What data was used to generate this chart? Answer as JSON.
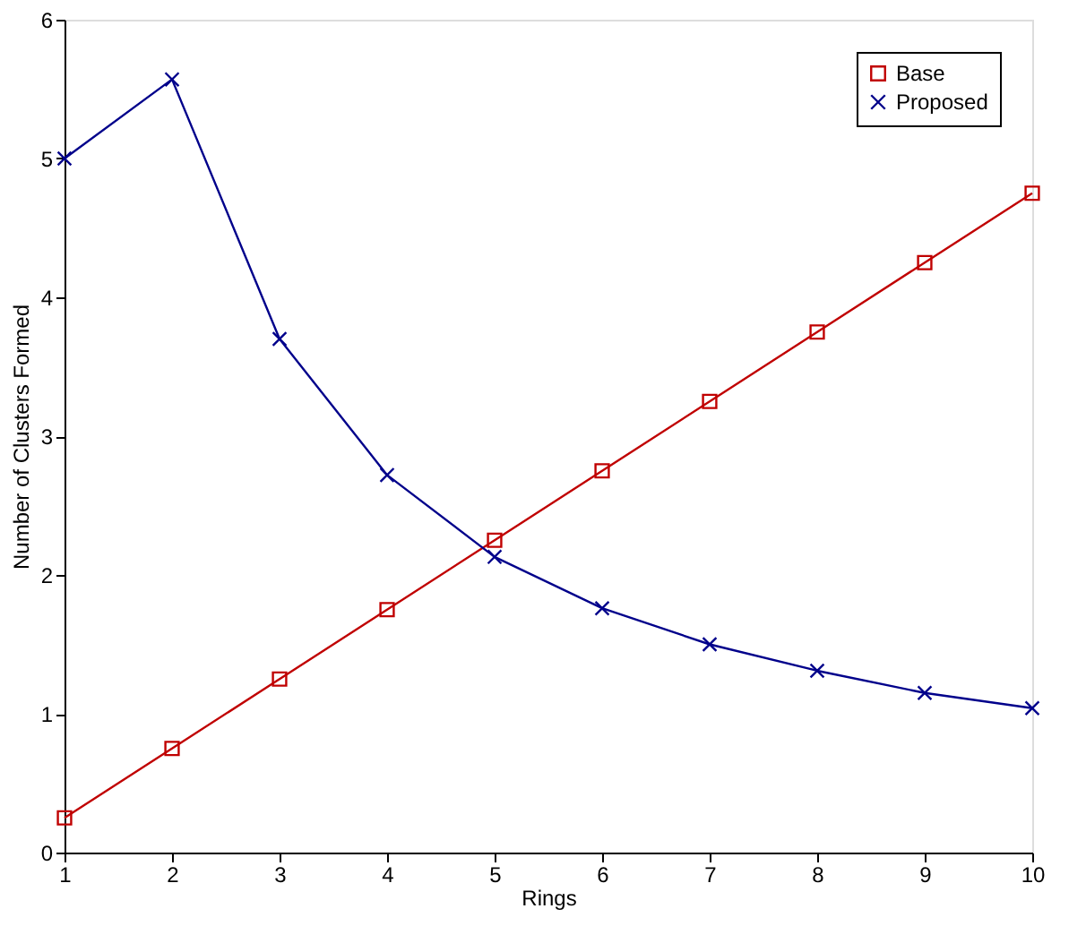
{
  "chart_data": {
    "type": "line",
    "xlabel": "Rings",
    "ylabel": "Number of Clusters Formed",
    "x": [
      1,
      2,
      3,
      4,
      5,
      6,
      7,
      8,
      9,
      10
    ],
    "series": [
      {
        "name": "Base",
        "color": "#c00000",
        "marker": "square",
        "values": [
          0.25,
          0.75,
          1.25,
          1.75,
          2.25,
          2.75,
          3.25,
          3.75,
          4.25,
          4.75
        ]
      },
      {
        "name": "Proposed",
        "color": "#00008b",
        "marker": "cross",
        "values": [
          5.0,
          5.57,
          3.7,
          2.72,
          2.13,
          1.76,
          1.5,
          1.31,
          1.15,
          1.04
        ]
      }
    ],
    "xlim": [
      1,
      10
    ],
    "xticks": [
      1,
      2,
      3,
      4,
      5,
      6,
      7,
      8,
      9,
      10
    ],
    "ylim": [
      0,
      6
    ],
    "yticks": [
      0,
      1,
      2,
      3,
      4,
      5,
      6
    ],
    "grid": false,
    "legend": "top right",
    "line_style": "solid"
  }
}
